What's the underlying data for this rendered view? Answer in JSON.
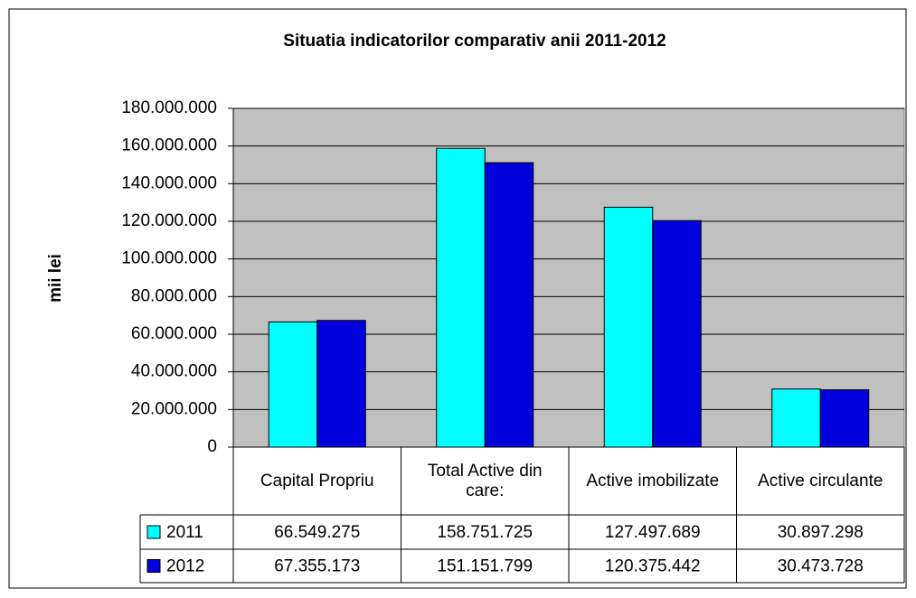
{
  "chart_data": {
    "type": "bar",
    "title": "Situatia indicatorilor comparativ anii 2011-2012",
    "y_label": "mii lei",
    "categories": [
      "Capital Propriu",
      "Total Active din care:",
      "Active imobilizate",
      "Active circulante"
    ],
    "series": [
      {
        "name": "2011",
        "color": "#00ffff",
        "values": [
          66549275,
          158751725,
          127497689,
          30897298
        ],
        "value_labels": [
          "66.549.275",
          "158.751.725",
          "127.497.689",
          "30.897.298"
        ]
      },
      {
        "name": "2012",
        "color": "#0000dd",
        "values": [
          67355173,
          151151799,
          120375442,
          30473728
        ],
        "value_labels": [
          "67.355.173",
          "151.151.799",
          "120.375.442",
          "30.473.728"
        ]
      }
    ],
    "ylim": [
      0,
      180000000
    ],
    "yticks": [
      0,
      {
        "value": 20000000,
        "label": "20.000.000"
      },
      {
        "value": 40000000,
        "label": "40.000.000"
      },
      {
        "value": 60000000,
        "label": "60.000.000"
      },
      {
        "value": 80000000,
        "label": "80.000.000"
      },
      {
        "value": 100000000,
        "label": "100.000.000"
      },
      {
        "value": 120000000,
        "label": "120.000.000"
      },
      {
        "value": 140000000,
        "label": "140.000.000"
      },
      {
        "value": 160000000,
        "label": "160.000.000"
      },
      {
        "value": 180000000,
        "label": "180.000.000"
      }
    ],
    "grid": true,
    "data_table": true
  }
}
